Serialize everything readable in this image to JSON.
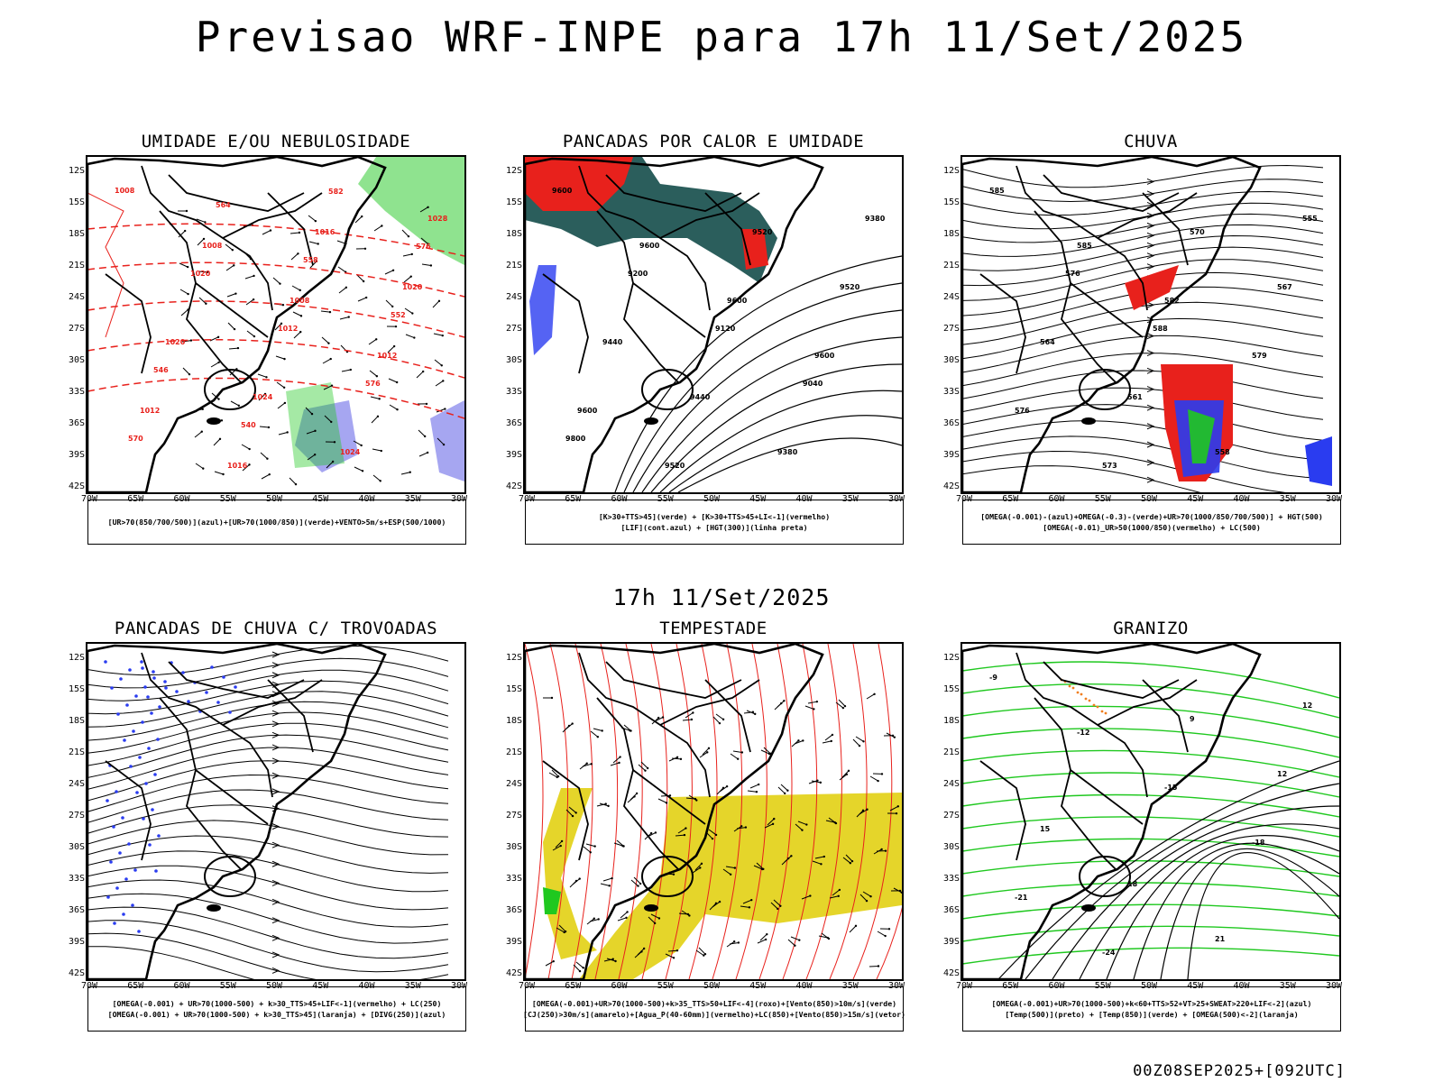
{
  "title": "Previsao WRF-INPE  para 17h 11/Set/2025",
  "mid_date": "17h 11/Set/2025",
  "run_info": "00Z08SEP2025+[092UTC]",
  "lat_labels": [
    "12S",
    "15S",
    "18S",
    "21S",
    "24S",
    "27S",
    "30S",
    "33S",
    "36S",
    "39S",
    "42S"
  ],
  "lon_labels": [
    "70W",
    "65W",
    "60W",
    "55W",
    "50W",
    "45W",
    "40W",
    "35W",
    "30W"
  ],
  "colors": {
    "red": "#e8211c",
    "green": "#1fc81f",
    "blue": "#2a3cf0",
    "purple": "#9090ee",
    "teal": "#2b5e5c",
    "yellow": "#e5d52a",
    "orange": "#f07e1e"
  },
  "panels": [
    {
      "title": "UMIDADE E/OU NEBULOSIDADE",
      "legend": [
        "[UR>70(850/700/500)](azul)+[UR>70(1000/850)](verde)+VENTO>5m/s+ESP(500/1000)"
      ],
      "contour_labels": [
        "1008",
        "1008",
        "1008",
        "1012",
        "1012",
        "1016",
        "1016",
        "1020",
        "1020",
        "1024",
        "1024",
        "1028",
        "1020",
        "1012",
        "576",
        "570",
        "564",
        "558",
        "552",
        "546",
        "540",
        "582",
        "576"
      ]
    },
    {
      "title": "PANCADAS POR CALOR E UMIDADE",
      "legend": [
        "[K>30+TTS>45](verde) + [K>30+TTS>45+LI<-1](vermelho)",
        "[LIF](cont.azul) + [HGT(300)](linha preta)"
      ],
      "contour_labels": [
        "9600",
        "9600",
        "9600",
        "9600",
        "9600",
        "9520",
        "9520",
        "9520",
        "9440",
        "9440",
        "9380",
        "9380",
        "9200",
        "9120",
        "9040",
        "9800"
      ]
    },
    {
      "title": "CHUVA",
      "legend": [
        "[OMEGA(-0.001)-(azul)+OMEGA(-0.3)-(verde)+UR>70(1000/850/700/500)] + HGT(500)",
        "[OMEGA(-0.01)_UR>50(1000/850)(vermelho) + LC(500)"
      ],
      "contour_labels": [
        "585",
        "585",
        "582",
        "579",
        "576",
        "573",
        "570",
        "567",
        "564",
        "561",
        "558",
        "555",
        "576",
        "588"
      ]
    },
    {
      "title": "PANCADAS DE CHUVA C/ TROVOADAS",
      "legend": [
        "[OMEGA(-0.001) + UR>70(1000-500) + k>30_TTS>45+LIF<-1](vermelho) + LC(250)",
        "[OMEGA(-0.001) + UR>70(1000-500) + k>30_TTS>45](laranja) + [DIVG(250)](azul)"
      ],
      "contour_labels": []
    },
    {
      "title": "TEMPESTADE",
      "legend": [
        "[OMEGA(-0.001)+UR>70(1000-500)+k>35_TTS>50+LIF<-4](roxo)+[Vento(850)>10m/s](verde)",
        "[CJ(250)>30m/s](amarelo)+[Agua_P(40-60mm)](vermelho)+LC(850)+[Vento(850)>15m/s](vetor)"
      ],
      "contour_labels": []
    },
    {
      "title": "GRANIZO",
      "legend": [
        "[OMEGA(-0.001)+UR>70(1000-500)+k<60+TTS>52+VT>25+SWEAT>220+LIF<-2](azul)",
        "[Temp(500)](preto) + [Temp(850)](verde) + [OMEGA(500)<-2](laranja)"
      ],
      "contour_labels": [
        "-9",
        "-12",
        "-15",
        "-18",
        "-21",
        "-24",
        "9",
        "12",
        "15",
        "18",
        "21",
        "12"
      ]
    }
  ]
}
